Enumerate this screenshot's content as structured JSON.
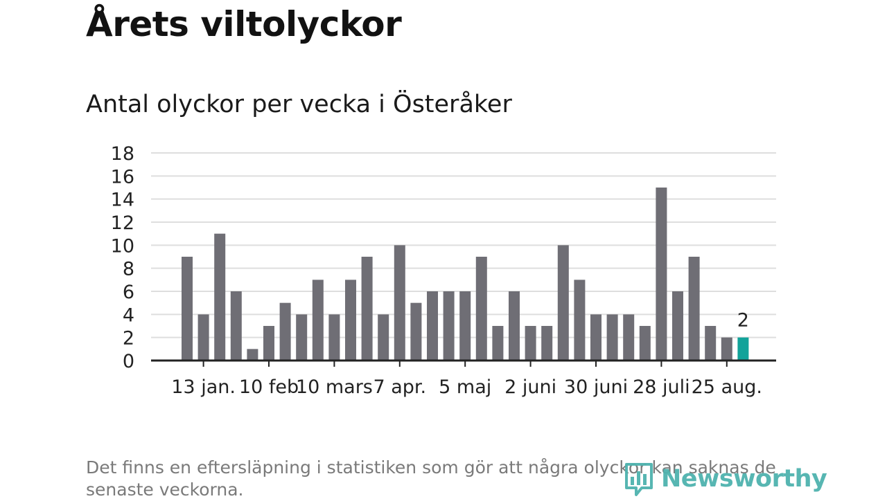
{
  "title": "Årets viltolyckor",
  "subtitle": "Antal olyckor per vecka i Österåker",
  "footnote": "Det finns en eftersläpning i statistiken som gör att några olyckor kan saknas de senaste veckorna.",
  "logo": {
    "text": "Newsworthy",
    "icon": "bar-chart-icon",
    "color": "#4fb3ae"
  },
  "colors": {
    "bar": "#6f6e75",
    "highlight": "#12a39a",
    "grid": "#dedede",
    "axis": "#222222"
  },
  "chart_data": {
    "type": "bar",
    "title": "Antal olyckor per vecka i Österåker",
    "ylim": [
      0,
      18
    ],
    "yticks": [
      0,
      2,
      4,
      6,
      8,
      10,
      12,
      14,
      16,
      18
    ],
    "xtick_labels": [
      "13 jan.",
      "10 feb",
      "10 mars",
      "7 apr.",
      "5 maj",
      "2 juni",
      "30 juni",
      "28 juli",
      "25 aug."
    ],
    "xtick_bar_index": [
      1,
      5,
      9,
      13,
      17,
      21,
      25,
      29,
      33
    ],
    "values": [
      9,
      4,
      11,
      6,
      1,
      3,
      5,
      4,
      7,
      4,
      7,
      9,
      4,
      10,
      5,
      6,
      6,
      6,
      9,
      3,
      6,
      3,
      3,
      10,
      7,
      4,
      4,
      4,
      3,
      15,
      6,
      9,
      3,
      2,
      2
    ],
    "highlight_index": 34,
    "highlight_label": "2",
    "grid": true
  }
}
